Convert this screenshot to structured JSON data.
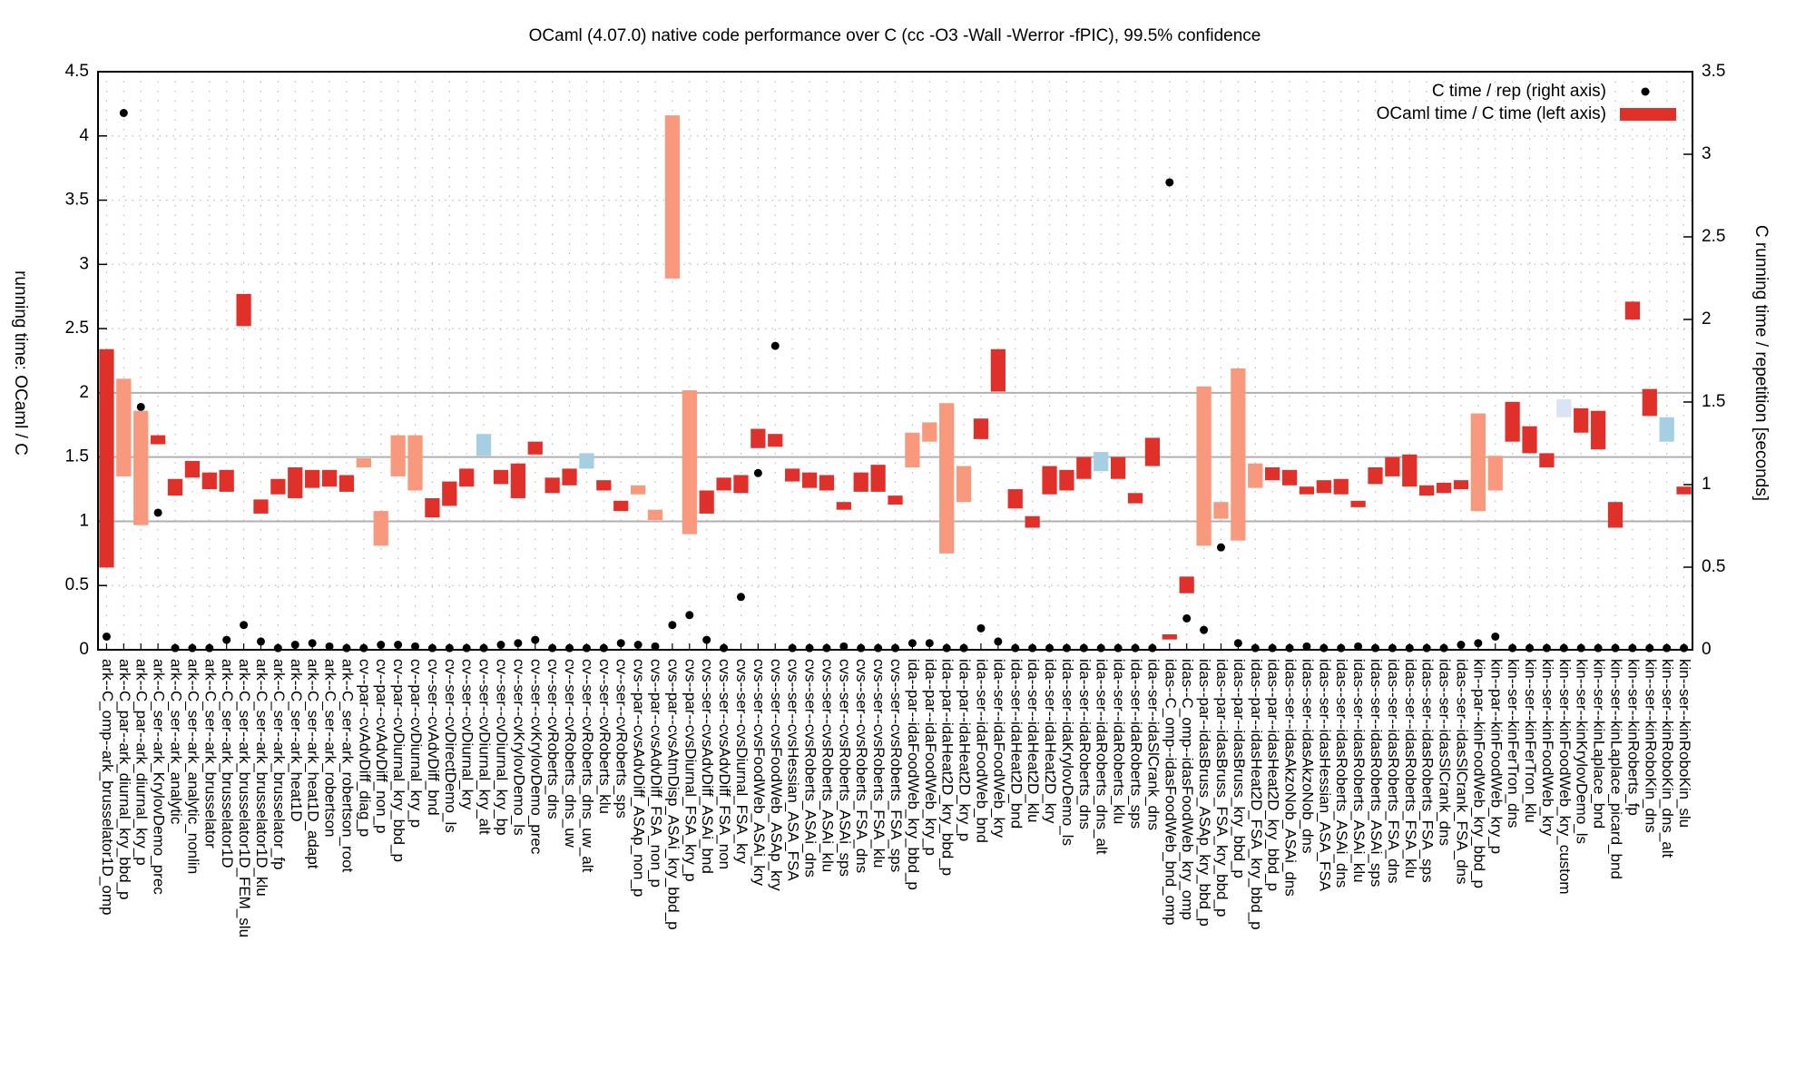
{
  "chart_data": {
    "type": "floating-bar",
    "title": "OCaml (4.07.0) native code performance over C (cc -O3 -Wall -Werror -fPIC), 99.5% confidence",
    "ylabel": "running time: OCaml / C",
    "y2label": "C running time / repetition [seconds]",
    "ylim": [
      0,
      4.5
    ],
    "yticks": [
      0,
      0.5,
      1,
      1.5,
      2,
      2.5,
      3,
      3.5,
      4,
      4.5
    ],
    "y2lim": [
      0,
      3.5
    ],
    "y2ticks": [
      0,
      0.5,
      1,
      1.5,
      2,
      2.5,
      3,
      3.5
    ],
    "grid": true,
    "reference_lines": [
      1,
      1.5,
      2
    ],
    "legend": "top-right",
    "categories": [
      "ark--C_omp--ark_brusselator1D_omp",
      "ark--C_par--ark_diurnal_kry_bbd_p",
      "ark--C_par--ark_diurnal_kry_p",
      "ark--C_ser--ark_KrylovDemo_prec",
      "ark--C_ser--ark_analytic",
      "ark--C_ser--ark_analytic_nonlin",
      "ark--C_ser--ark_brusselator",
      "ark--C_ser--ark_brusselator1D",
      "ark--C_ser--ark_brusselator1D_FEM_slu",
      "ark--C_ser--ark_brusselator1D_klu",
      "ark--C_ser--ark_brusselator_fp",
      "ark--C_ser--ark_heat1D",
      "ark--C_ser--ark_heat1D_adapt",
      "ark--C_ser--ark_robertson",
      "ark--C_ser--ark_robertson_root",
      "cv--par--cvAdvDiff_diag_p",
      "cv--par--cvAdvDiff_non_p",
      "cv--par--cvDiurnal_kry_bbd_p",
      "cv--par--cvDiurnal_kry_p",
      "cv--ser--cvAdvDiff_bnd",
      "cv--ser--cvDirectDemo_ls",
      "cv--ser--cvDiurnal_kry",
      "cv--ser--cvDiurnal_kry_alt",
      "cv--ser--cvDiurnal_kry_bp",
      "cv--ser--cvKrylovDemo_ls",
      "cv--ser--cvKrylovDemo_prec",
      "cv--ser--cvRoberts_dns",
      "cv--ser--cvRoberts_dns_uw",
      "cv--ser--cvRoberts_dns_uw_alt",
      "cv--ser--cvRoberts_klu",
      "cv--ser--cvRoberts_sps",
      "cvs--par--cvsAdvDiff_ASAp_non_p",
      "cvs--par--cvsAdvDiff_FSA_non_p",
      "cvs--par--cvsAtmDisp_ASAi_kry_bbd_p",
      "cvs--par--cvsDiurnal_FSA_kry_p",
      "cvs--ser--cvsAdvDiff_ASAi_bnd",
      "cvs--ser--cvsAdvDiff_FSA_non",
      "cvs--ser--cvsDiurnal_FSA_kry",
      "cvs--ser--cvsFoodWeb_ASAi_kry",
      "cvs--ser--cvsFoodWeb_ASAp_kry",
      "cvs--ser--cvsHessian_ASA_FSA",
      "cvs--ser--cvsRoberts_ASAi_dns",
      "cvs--ser--cvsRoberts_ASAi_klu",
      "cvs--ser--cvsRoberts_ASAi_sps",
      "cvs--ser--cvsRoberts_FSA_dns",
      "cvs--ser--cvsRoberts_FSA_klu",
      "cvs--ser--cvsRoberts_FSA_sps",
      "ida--par--idaFoodWeb_kry_bbd_p",
      "ida--par--idaFoodWeb_kry_p",
      "ida--par--idaHeat2D_kry_bbd_p",
      "ida--par--idaHeat2D_kry_p",
      "ida--ser--idaFoodWeb_bnd",
      "ida--ser--idaFoodWeb_kry",
      "ida--ser--idaHeat2D_bnd",
      "ida--ser--idaHeat2D_klu",
      "ida--ser--idaHeat2D_kry",
      "ida--ser--idaKrylovDemo_ls",
      "ida--ser--idaRoberts_dns",
      "ida--ser--idaRoberts_dns_alt",
      "ida--ser--idaRoberts_klu",
      "ida--ser--idaRoberts_sps",
      "ida--ser--idaSlCrank_dns",
      "idas--C_omp--idasFoodWeb_bnd_omp",
      "idas--C_omp--idasFoodWeb_kry_omp",
      "idas--par--idasBruss_ASAp_kry_bbd_p",
      "idas--par--idasBruss_FSA_kry_bbd_p",
      "idas--par--idasBruss_kry_bbd_p",
      "idas--par--idasHeat2D_FSA_kry_bbd_p",
      "idas--par--idasHeat2D_kry_bbd_p",
      "idas--ser--idasAkzoNob_ASAi_dns",
      "idas--ser--idasAkzoNob_dns",
      "idas--ser--idasHessian_ASA_FSA",
      "idas--ser--idasRoberts_ASAi_dns",
      "idas--ser--idasRoberts_ASAi_klu",
      "idas--ser--idasRoberts_ASAi_sps",
      "idas--ser--idasRoberts_FSA_dns",
      "idas--ser--idasRoberts_FSA_klu",
      "idas--ser--idasRoberts_FSA_sps",
      "idas--ser--idasSlCrank_dns",
      "idas--ser--idasSlCrank_FSA_dns",
      "kin--par--kinFoodWeb_kry_bbd_p",
      "kin--par--kinFoodWeb_kry_p",
      "kin--ser--kinFerTron_dns",
      "kin--ser--kinFerTron_klu",
      "kin--ser--kinFoodWeb_kry",
      "kin--ser--kinFoodWeb_kry_custom",
      "kin--ser--kinKrylovDemo_ls",
      "kin--ser--kinLaplace_bnd",
      "kin--ser--kinLaplace_picard_bnd",
      "kin--ser--kinRoberts_fp",
      "kin--ser--kinRoboKin_dns",
      "kin--ser--kinRoboKin_dns_alt",
      "kin--ser--kinRoboKin_slu"
    ],
    "series": [
      {
        "name": "C time / rep (right axis)",
        "color": "#000000",
        "text_color": "#000000",
        "axis": "y2",
        "values": [
          0.08,
          3.25,
          1.47,
          0.83,
          0.01,
          0.01,
          0.01,
          0.06,
          0.15,
          0.05,
          0.01,
          0.03,
          0.04,
          0.02,
          0.01,
          0.01,
          0.03,
          0.03,
          0.02,
          0.01,
          0.01,
          0.01,
          0.01,
          0.03,
          0.04,
          0.06,
          0.01,
          0.01,
          0.01,
          0.01,
          0.04,
          0.03,
          0.02,
          0.15,
          0.21,
          0.06,
          0.01,
          0.32,
          1.07,
          1.84,
          0.01,
          0.01,
          0.01,
          0.02,
          0.01,
          0.01,
          0.01,
          0.04,
          0.04,
          0.01,
          0.01,
          0.13,
          0.05,
          0.01,
          0.01,
          0.01,
          0.01,
          0.01,
          0.01,
          0.01,
          0.01,
          0.01,
          2.83,
          0.19,
          0.12,
          0.62,
          0.04,
          0.01,
          0.01,
          0.01,
          0.02,
          0.01,
          0.01,
          0.02,
          0.01,
          0.01,
          0.01,
          0.01,
          0.01,
          0.03,
          0.04,
          0.08,
          0.01,
          0.01,
          0.01,
          0.01,
          0.01,
          0.01,
          0.01,
          0.01,
          0.01,
          0.01,
          0.01
        ]
      },
      {
        "name": "OCaml time / C time (left axis)",
        "color": "#e0302a",
        "text_color": "#009e73",
        "low": [
          0.64,
          1.35,
          0.97,
          1.6,
          1.2,
          1.34,
          1.25,
          1.23,
          2.52,
          1.06,
          1.21,
          1.18,
          1.26,
          1.27,
          1.23,
          1.42,
          0.81,
          1.35,
          1.24,
          1.03,
          1.12,
          1.27,
          1.51,
          1.29,
          1.18,
          1.52,
          1.22,
          1.28,
          1.41,
          1.24,
          1.08,
          1.21,
          1.01,
          2.89,
          0.9,
          1.06,
          1.24,
          1.22,
          1.57,
          1.58,
          1.31,
          1.26,
          1.24,
          1.09,
          1.23,
          1.23,
          1.13,
          1.42,
          1.62,
          0.75,
          1.15,
          1.64,
          2.01,
          1.1,
          0.95,
          1.21,
          1.24,
          1.33,
          1.39,
          1.33,
          1.14,
          1.43,
          0.08,
          0.44,
          0.81,
          1.02,
          0.85,
          1.26,
          1.32,
          1.28,
          1.21,
          1.22,
          1.21,
          1.11,
          1.29,
          1.35,
          1.27,
          1.2,
          1.22,
          1.25,
          1.08,
          1.24,
          1.62,
          1.53,
          1.42,
          1.81,
          1.69,
          1.56,
          0.95,
          2.57,
          1.82,
          1.62,
          1.21
        ],
        "high": [
          2.34,
          2.11,
          1.86,
          1.67,
          1.33,
          1.47,
          1.38,
          1.4,
          2.77,
          1.17,
          1.33,
          1.42,
          1.4,
          1.4,
          1.36,
          1.49,
          1.08,
          1.67,
          1.67,
          1.18,
          1.31,
          1.41,
          1.68,
          1.4,
          1.45,
          1.62,
          1.34,
          1.41,
          1.53,
          1.32,
          1.16,
          1.28,
          1.09,
          4.16,
          2.02,
          1.24,
          1.34,
          1.36,
          1.72,
          1.68,
          1.41,
          1.38,
          1.36,
          1.15,
          1.38,
          1.44,
          1.2,
          1.69,
          1.77,
          1.92,
          1.43,
          1.8,
          2.34,
          1.25,
          1.04,
          1.43,
          1.4,
          1.5,
          1.54,
          1.5,
          1.22,
          1.65,
          0.12,
          0.57,
          2.05,
          1.15,
          2.19,
          1.45,
          1.42,
          1.4,
          1.27,
          1.32,
          1.33,
          1.16,
          1.42,
          1.5,
          1.52,
          1.28,
          1.3,
          1.32,
          1.84,
          1.51,
          1.93,
          1.74,
          1.53,
          1.95,
          1.88,
          1.86,
          1.15,
          2.71,
          2.03,
          1.81,
          1.27
        ],
        "colors": [
          "#e0302a",
          "#f8987c",
          "#f8987c",
          "#e0302a",
          "#e0302a",
          "#e0302a",
          "#e0302a",
          "#e0302a",
          "#e0302a",
          "#e0302a",
          "#e0302a",
          "#e0302a",
          "#e0302a",
          "#e0302a",
          "#e0302a",
          "#f8987c",
          "#f8987c",
          "#f8987c",
          "#f8987c",
          "#e0302a",
          "#e0302a",
          "#e0302a",
          "#a6cfe4",
          "#e0302a",
          "#e0302a",
          "#e0302a",
          "#e0302a",
          "#e0302a",
          "#a6cfe4",
          "#e0302a",
          "#e0302a",
          "#f8987c",
          "#f8987c",
          "#f8987c",
          "#f8987c",
          "#e0302a",
          "#e0302a",
          "#e0302a",
          "#e0302a",
          "#e0302a",
          "#e0302a",
          "#e0302a",
          "#e0302a",
          "#e0302a",
          "#e0302a",
          "#e0302a",
          "#e0302a",
          "#f8987c",
          "#f8987c",
          "#f8987c",
          "#f8987c",
          "#e0302a",
          "#e0302a",
          "#e0302a",
          "#e0302a",
          "#e0302a",
          "#e0302a",
          "#e0302a",
          "#a6cfe4",
          "#e0302a",
          "#e0302a",
          "#e0302a",
          "#e0302a",
          "#e0302a",
          "#f8987c",
          "#f8987c",
          "#f8987c",
          "#f8987c",
          "#e0302a",
          "#e0302a",
          "#e0302a",
          "#e0302a",
          "#e0302a",
          "#e0302a",
          "#e0302a",
          "#e0302a",
          "#e0302a",
          "#e0302a",
          "#e0302a",
          "#e0302a",
          "#f8987c",
          "#f8987c",
          "#e0302a",
          "#e0302a",
          "#e0302a",
          "#d9e4f5",
          "#e0302a",
          "#e0302a",
          "#e0302a",
          "#e0302a",
          "#e0302a",
          "#a6cfe4",
          "#e0302a"
        ]
      }
    ]
  }
}
